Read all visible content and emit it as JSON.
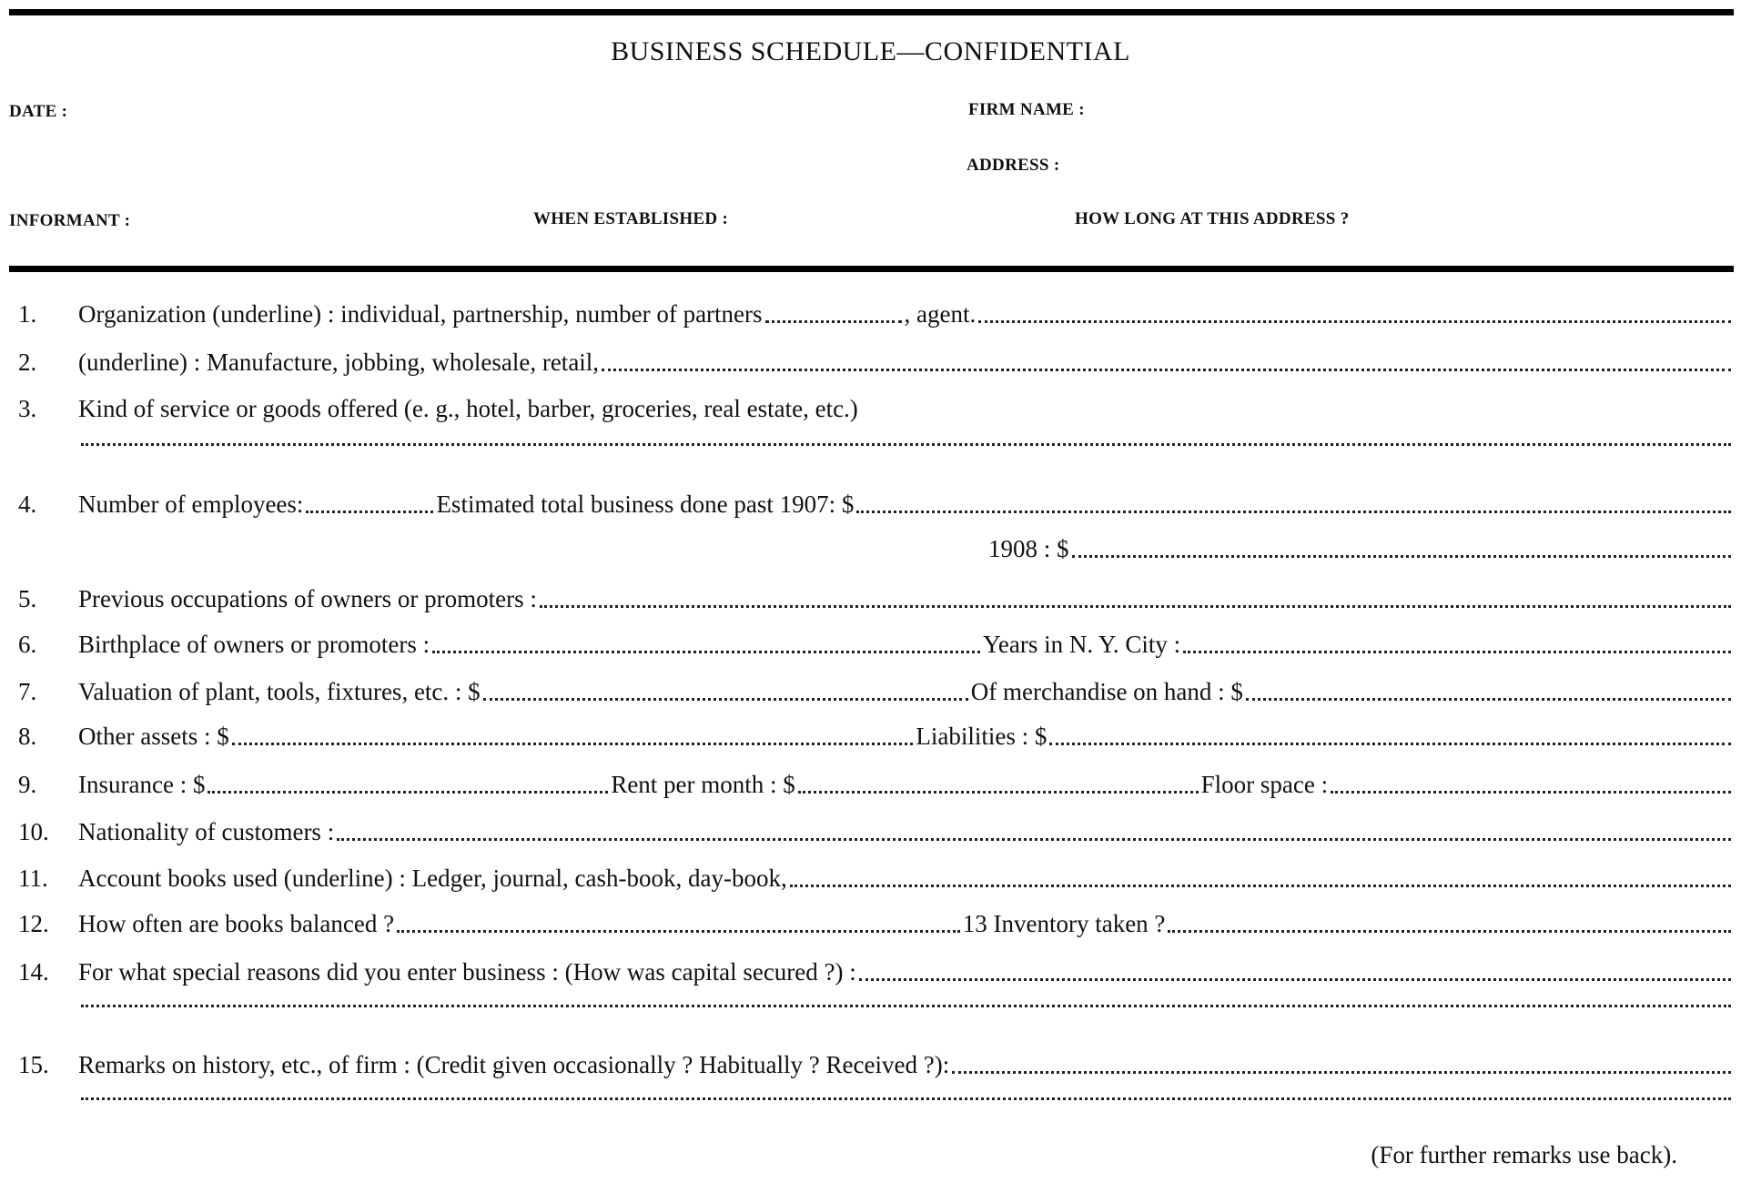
{
  "title": "BUSINESS SCHEDULE—CONFIDENTIAL",
  "header_fields": {
    "date": "DATE :",
    "firm_name": "FIRM NAME :",
    "address": "ADDRESS :",
    "informant": "INFORMANT :",
    "when_established": "WHEN ESTABLISHED :",
    "how_long": "HOW LONG AT THIS ADDRESS ?"
  },
  "rows": [
    {
      "num": "1.",
      "parts": [
        "Organization (underline) : individual, partnership, number of partners",
        "#150",
        ", agent.",
        "#"
      ]
    },
    {
      "num": "2.",
      "parts": [
        "(underline) : Manufacture, jobbing, wholesale, retail,",
        "#"
      ]
    },
    {
      "num": "3.",
      "parts": [
        "Kind of service or goods offered (e. g., hotel, barber, groceries, real estate, etc.)"
      ]
    },
    {
      "num": "",
      "parts": [
        "#"
      ]
    },
    {
      "num": "4.",
      "parts": [
        "Number of employees:",
        "#140",
        "Estimated total business done past 1907: $",
        "#"
      ]
    },
    {
      "num": "",
      "pad": 1000,
      "parts": [
        "1908 : $",
        "#"
      ]
    },
    {
      "num": "5.",
      "parts": [
        "Previous occupations of owners or promoters :",
        "#"
      ]
    },
    {
      "num": "6.",
      "parts": [
        "Birthplace of owners or promoters :",
        "#",
        "Years in N. Y. City :",
        "#"
      ]
    },
    {
      "num": "7.",
      "parts": [
        "Valuation of plant, tools, fixtures, etc. : $",
        "#",
        "Of merchandise on hand : $",
        "#"
      ]
    },
    {
      "num": "8.",
      "parts": [
        "Other assets : $",
        "#",
        "Liabilities : $",
        "#"
      ]
    },
    {
      "num": "9.",
      "parts": [
        "Insurance : $",
        "#",
        "Rent per month : $",
        "#",
        "Floor space :",
        "#"
      ]
    },
    {
      "num": "10.",
      "parts": [
        "Nationality of customers :",
        "#"
      ]
    },
    {
      "num": "11.",
      "parts": [
        "Account books used (underline) : Ledger, journal, cash-book, day-book,",
        "#"
      ]
    },
    {
      "num": "12.",
      "parts": [
        "How often are books balanced ?",
        "#",
        "13  Inventory taken ?",
        "#"
      ]
    },
    {
      "num": "14.",
      "parts": [
        "For what special reasons did you enter business : (How was capital secured ?) :",
        "#"
      ]
    },
    {
      "num": "",
      "parts": [
        "#"
      ]
    },
    {
      "num": "15.",
      "parts": [
        "Remarks on history, etc., of firm : (Credit given occasionally ?  Habitually ?  Received ?):",
        "#"
      ]
    },
    {
      "num": "",
      "parts": [
        "#"
      ]
    }
  ],
  "footer_note": "(For further remarks use back)."
}
